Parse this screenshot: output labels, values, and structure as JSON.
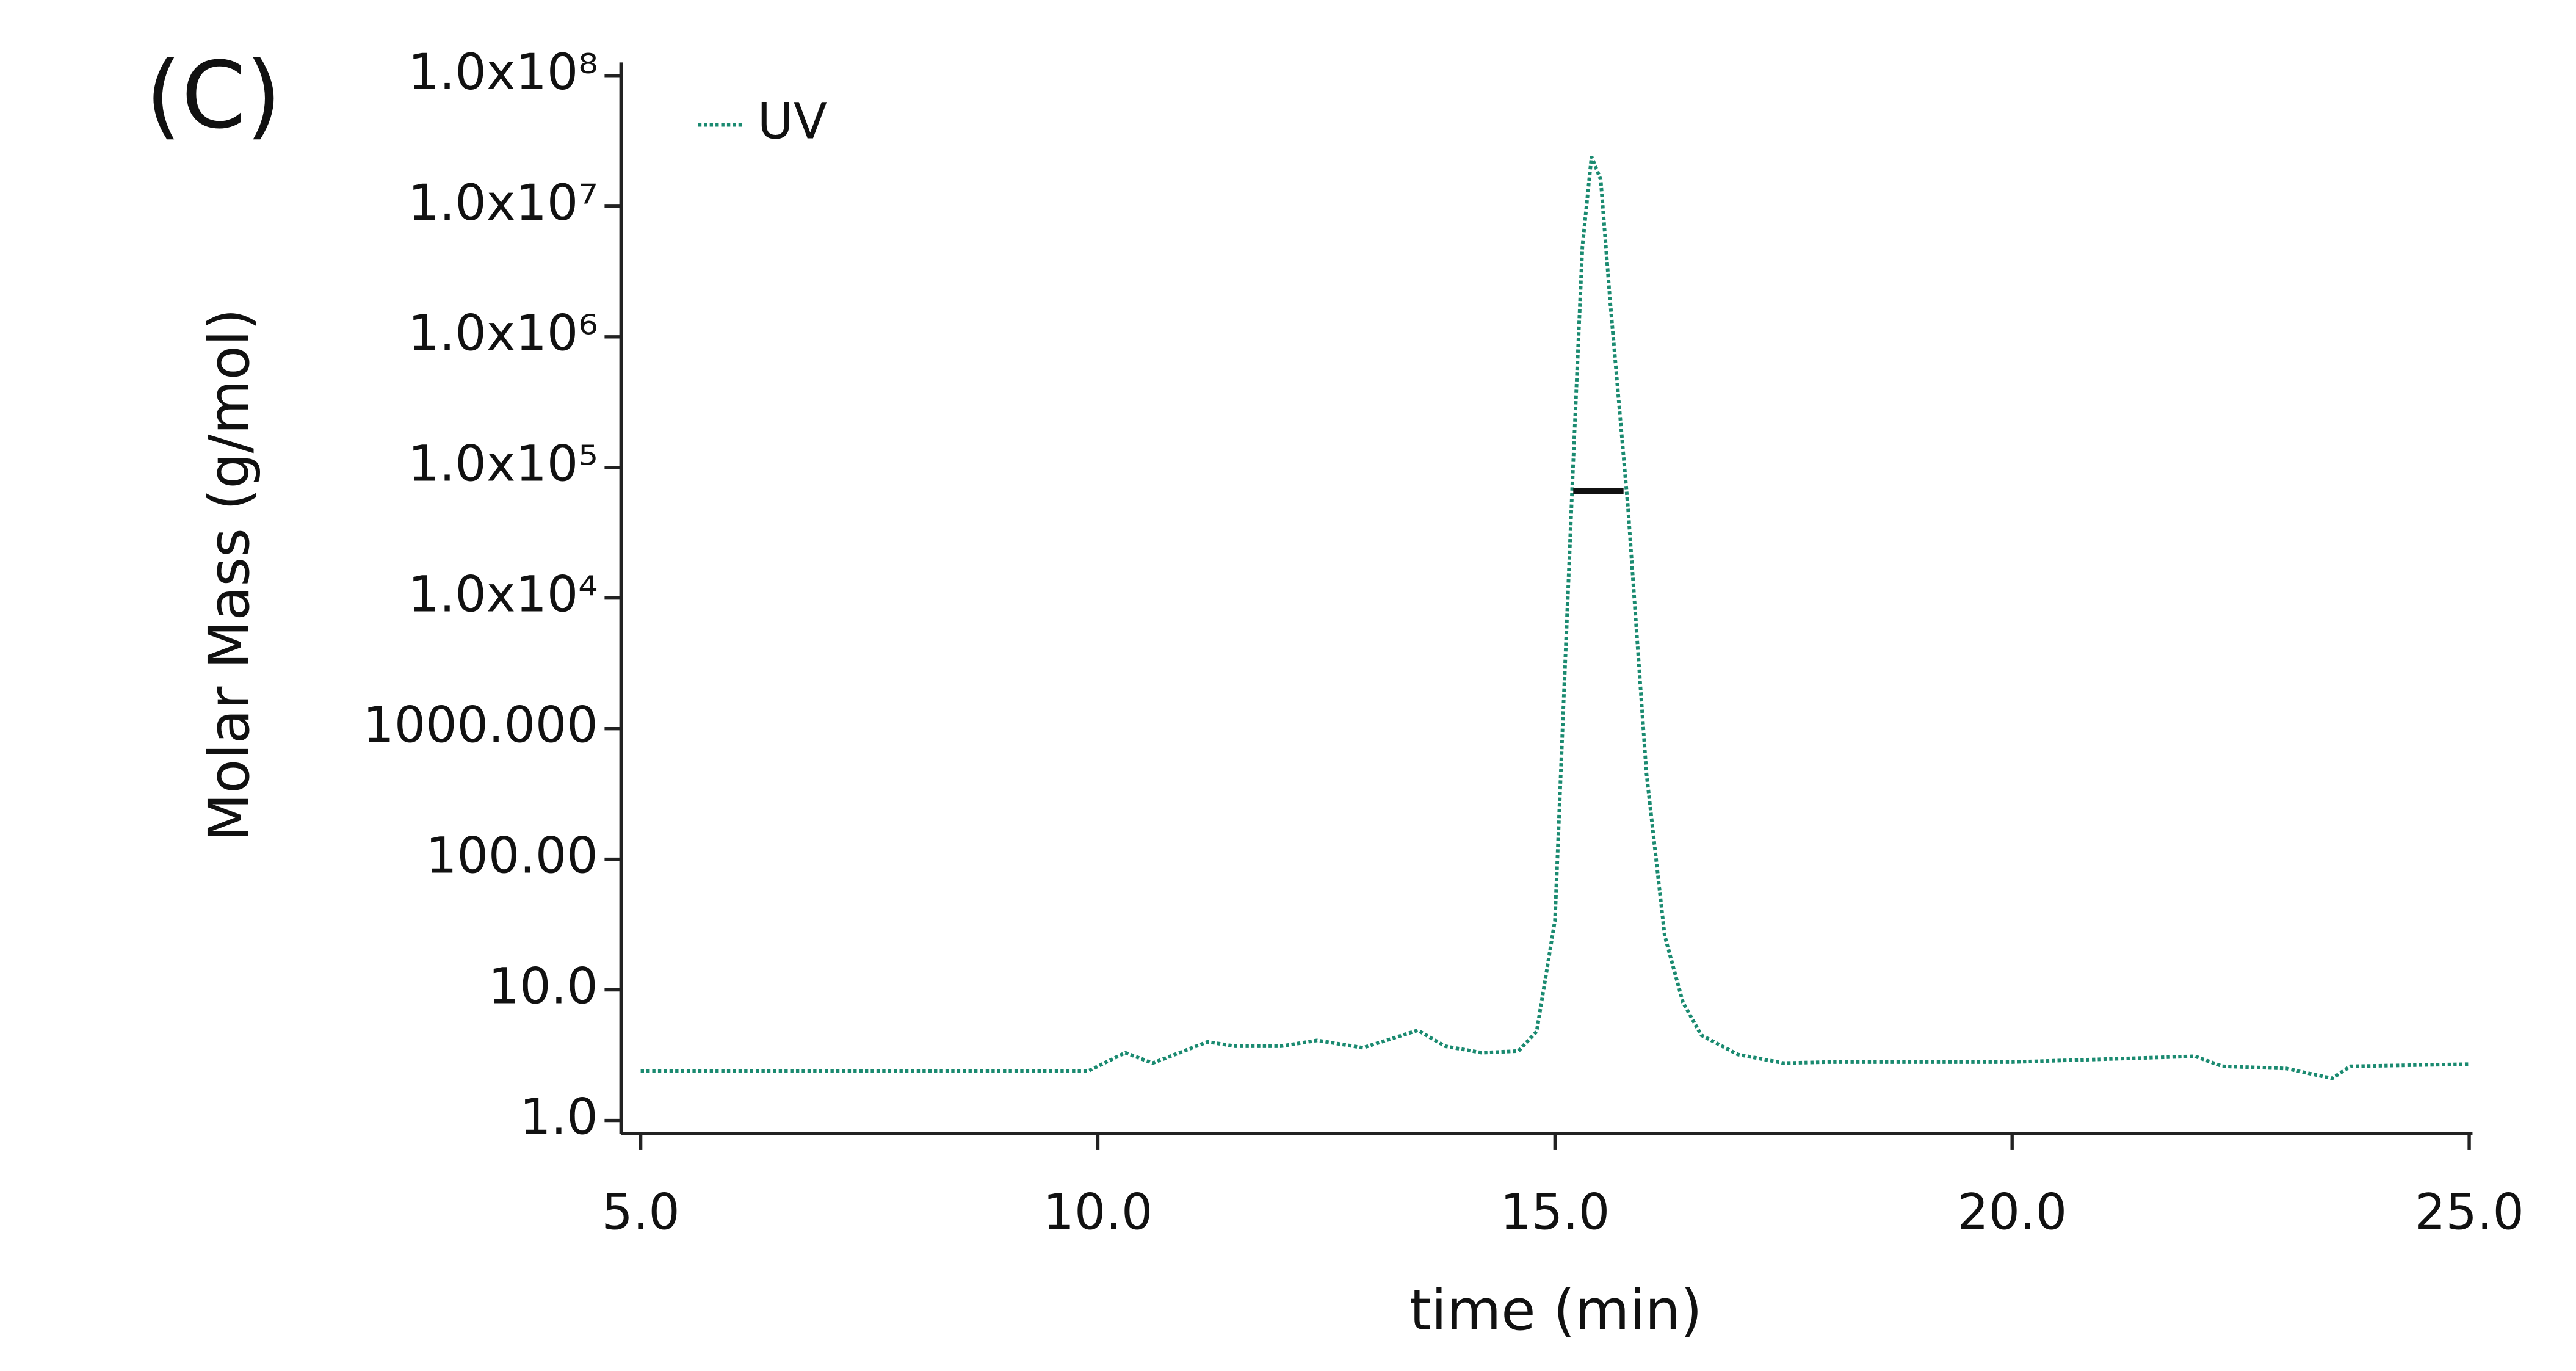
{
  "chart_data": {
    "type": "line",
    "panel_label": "(C)",
    "x_label": "time (min)",
    "y_label": "Molar Mass (g/mol)",
    "log_y": true,
    "legend": "top-left",
    "xlim": [
      5,
      25
    ],
    "xticks": [
      {
        "value": 5,
        "label": "5.0"
      },
      {
        "value": 10,
        "label": "10.0"
      },
      {
        "value": 15,
        "label": "15.0"
      },
      {
        "value": 20,
        "label": "20.0"
      },
      {
        "value": 25,
        "label": "25.0"
      }
    ],
    "ylim": [
      1,
      100000000
    ],
    "yticks": [
      {
        "value": 1,
        "label": "1.0"
      },
      {
        "value": 10,
        "label": "10.0"
      },
      {
        "value": 100,
        "label": "100.00"
      },
      {
        "value": 1000,
        "label": "1000.000"
      },
      {
        "value": 10000,
        "label": "1.0x10⁴"
      },
      {
        "value": 100000,
        "label": "1.0x10⁵"
      },
      {
        "value": 1000000,
        "label": "1.0x10⁶"
      },
      {
        "value": 10000000,
        "label": "1.0x10⁷"
      },
      {
        "value": 100000000,
        "label": "1.0x10⁸"
      }
    ],
    "series": [
      {
        "name": "UV",
        "color": "#1a8a70",
        "dashed": true,
        "x": [
          5,
          9.9,
          10.3,
          10.6,
          11.2,
          11.5,
          12,
          12.4,
          12.9,
          13.5,
          13.8,
          14.2,
          14.6,
          14.8,
          15,
          15.1,
          15.2,
          15.3,
          15.4,
          15.5,
          15.6,
          15.8,
          16,
          16.2,
          16.4,
          16.6,
          17,
          17.5,
          18,
          20,
          22,
          22.3,
          23,
          23.5,
          23.7,
          25
        ],
        "values": [
          2.4,
          2.4,
          3.3,
          2.75,
          4,
          3.7,
          3.7,
          4.1,
          3.6,
          4.9,
          3.7,
          3.3,
          3.4,
          4.8,
          34,
          2000,
          110000,
          4900000,
          24000000,
          16000000,
          2000000,
          48000,
          460,
          26,
          8,
          4.5,
          3.2,
          2.75,
          2.8,
          2.8,
          3.1,
          2.6,
          2.5,
          2.1,
          2.6,
          2.7
        ]
      },
      {
        "color": "#111111",
        "dashed": false,
        "x": [
          15.2,
          15.75
        ],
        "values": [
          66000,
          66000
        ]
      }
    ]
  }
}
